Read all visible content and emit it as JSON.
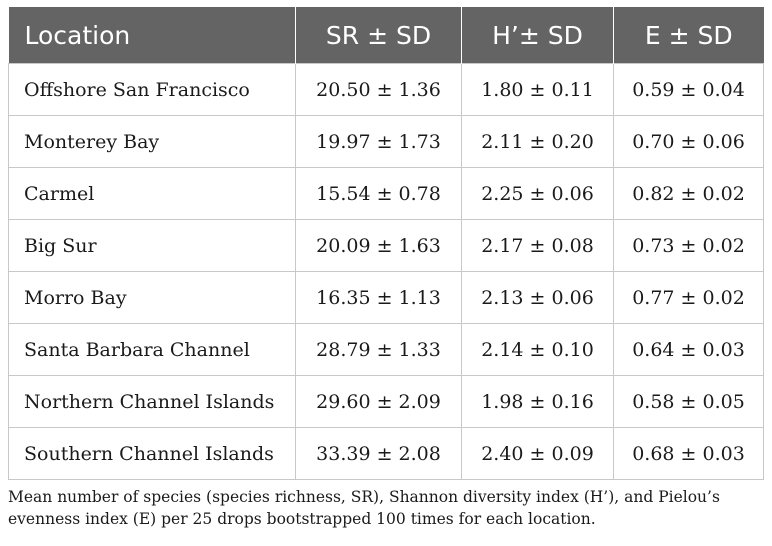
{
  "table": {
    "headers": [
      "Location",
      "SR ± SD",
      "H’± SD",
      "E ± SD"
    ],
    "rows": [
      [
        "Offshore San Francisco",
        "20.50 ± 1.36",
        "1.80 ± 0.11",
        "0.59 ± 0.04"
      ],
      [
        "Monterey Bay",
        "19.97 ± 1.73",
        "2.11 ± 0.20",
        "0.70 ± 0.06"
      ],
      [
        "Carmel",
        "15.54 ± 0.78",
        "2.25 ± 0.06",
        "0.82 ± 0.02"
      ],
      [
        "Big Sur",
        "20.09 ± 1.63",
        "2.17 ± 0.08",
        "0.73 ± 0.02"
      ],
      [
        "Morro Bay",
        "16.35 ± 1.13",
        "2.13 ± 0.06",
        "0.77 ± 0.02"
      ],
      [
        "Santa Barbara Channel",
        "28.79 ± 1.33",
        "2.14 ± 0.10",
        "0.64 ± 0.03"
      ],
      [
        "Northern Channel Islands",
        "29.60 ± 2.09",
        "1.98 ± 0.16",
        "0.58 ± 0.05"
      ],
      [
        "Southern Channel Islands",
        "33.39 ± 2.08",
        "2.40 ± 0.09",
        "0.68 ± 0.03"
      ]
    ]
  },
  "footnote": "Mean number of species (species richness, SR), Shannon diversity index (H’), and Pielou’s evenness index (E) per 25 drops bootstrapped 100 times for each location.",
  "colors": {
    "header_bg": "#646464",
    "header_text": "#ffffff",
    "border": "#c8c8c8"
  }
}
